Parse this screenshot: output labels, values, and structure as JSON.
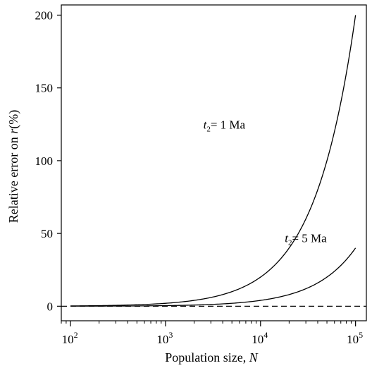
{
  "chart_data": {
    "type": "line",
    "xlabel": "Population size, ",
    "xlabel_var": "N",
    "ylabel": "Relative error on ",
    "ylabel_var": "r",
    "ylabel_unit": "(%)",
    "x_scale": "log",
    "xlim": [
      80,
      130000
    ],
    "ylim": [
      -10,
      207
    ],
    "x_ticks": [
      {
        "value": 100,
        "base": "10",
        "exp": "2"
      },
      {
        "value": 1000,
        "base": "10",
        "exp": "3"
      },
      {
        "value": 10000,
        "base": "10",
        "exp": "4"
      },
      {
        "value": 100000,
        "base": "10",
        "exp": "5"
      }
    ],
    "y_ticks": [
      {
        "value": 0,
        "label": "0"
      },
      {
        "value": 50,
        "label": "50"
      },
      {
        "value": 100,
        "label": "100"
      },
      {
        "value": 150,
        "label": "150"
      },
      {
        "value": 200,
        "label": "200"
      }
    ],
    "grid": false,
    "series": [
      {
        "key": "t1",
        "style": "solid",
        "x": [
          100,
          300,
          1000,
          3000,
          10000,
          30000,
          100000
        ],
        "y": [
          0.2,
          0.6,
          2,
          6,
          20,
          60,
          200
        ]
      },
      {
        "key": "t5",
        "style": "solid",
        "x": [
          100,
          300,
          1000,
          3000,
          10000,
          30000,
          100000
        ],
        "y": [
          0.04,
          0.12,
          0.4,
          1.2,
          4,
          12,
          40
        ]
      },
      {
        "key": "zero",
        "style": "dashed",
        "x": [
          80,
          130000
        ],
        "y": [
          0,
          0
        ]
      }
    ],
    "annotations": [
      {
        "key": "t1",
        "var": "t",
        "sub": "2",
        "text": "= 1 Ma",
        "x": 2500,
        "y": 122
      },
      {
        "key": "t5",
        "var": "t",
        "sub": "2",
        "text": "= 5 Ma",
        "x": 18000,
        "y": 44
      }
    ]
  }
}
